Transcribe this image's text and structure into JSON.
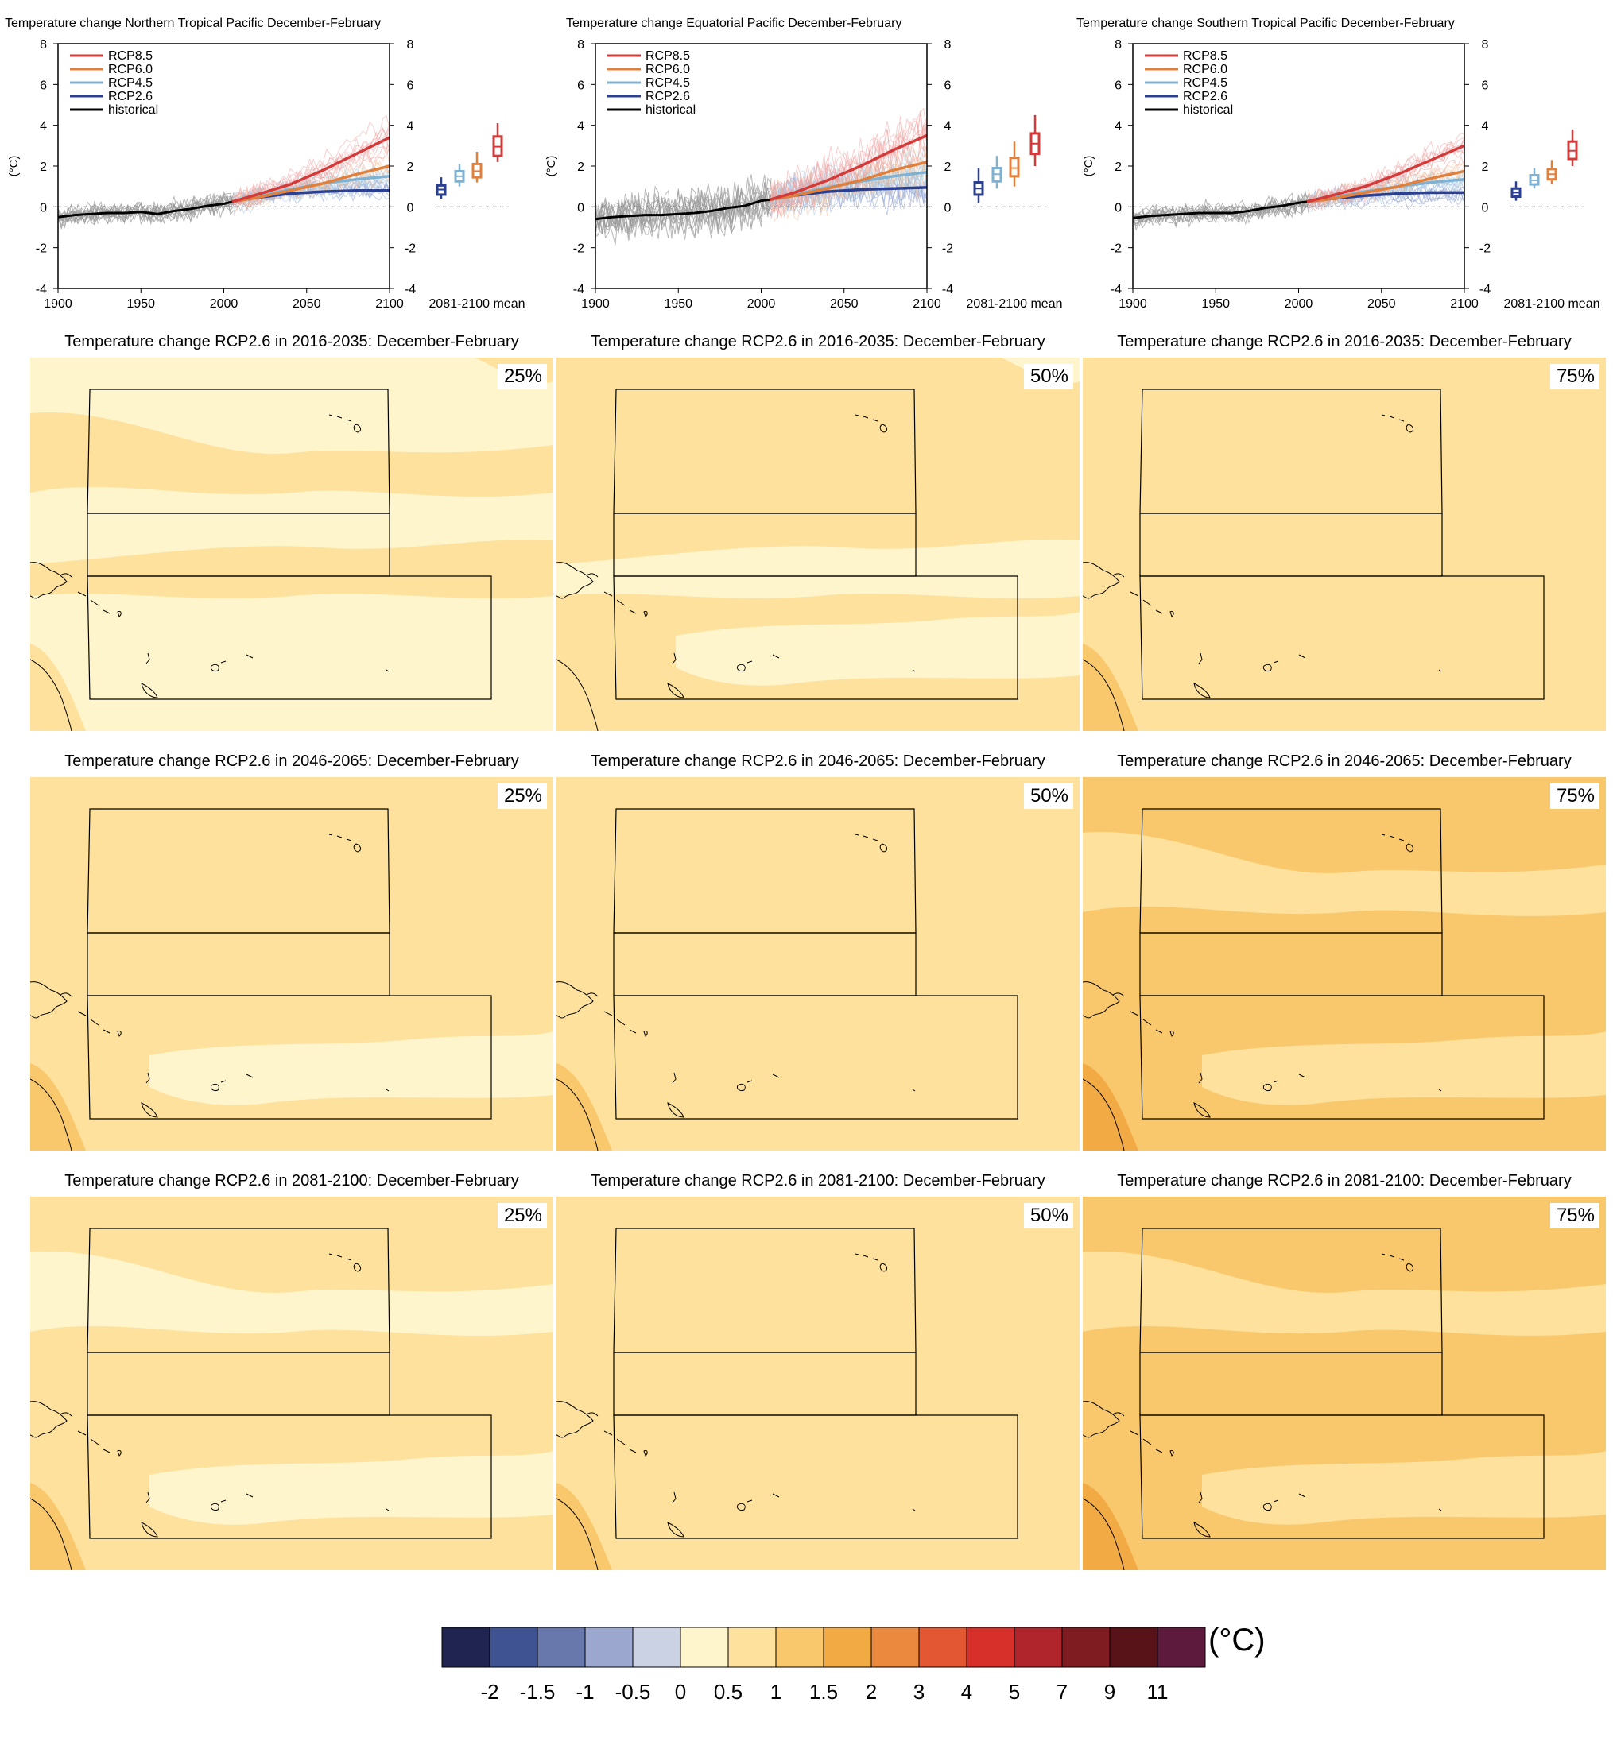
{
  "chart_data": [
    {
      "type": "line",
      "title": "Temperature change Northern Tropical Pacific December-February",
      "ylabel": "(°C)",
      "xlim": [
        1900,
        2100
      ],
      "ylim": [
        -4,
        8
      ],
      "xticks": [
        "1900",
        "1950",
        "2000",
        "2050",
        "2100"
      ],
      "yticks": [
        "-4",
        "-2",
        "0",
        "2",
        "4",
        "6",
        "8"
      ],
      "box_label": "2081-2100 mean",
      "legend": [
        "RCP8.5",
        "RCP6.0",
        "RCP4.5",
        "RCP2.6",
        "historical"
      ],
      "legend_position": "top-left",
      "series": [
        {
          "name": "historical",
          "x": [
            1900,
            1910,
            1920,
            1930,
            1940,
            1950,
            1960,
            1970,
            1980,
            1990,
            2000,
            2005
          ],
          "y": [
            -0.5,
            -0.4,
            -0.35,
            -0.3,
            -0.3,
            -0.25,
            -0.35,
            -0.2,
            -0.1,
            0.05,
            0.15,
            0.25
          ]
        },
        {
          "name": "RCP2.6",
          "x": [
            2005,
            2020,
            2040,
            2060,
            2080,
            2100
          ],
          "y": [
            0.25,
            0.45,
            0.65,
            0.75,
            0.8,
            0.8
          ]
        },
        {
          "name": "RCP4.5",
          "x": [
            2005,
            2020,
            2040,
            2060,
            2080,
            2100
          ],
          "y": [
            0.25,
            0.5,
            0.85,
            1.15,
            1.35,
            1.5
          ]
        },
        {
          "name": "RCP6.0",
          "x": [
            2005,
            2020,
            2040,
            2060,
            2080,
            2100
          ],
          "y": [
            0.25,
            0.45,
            0.8,
            1.15,
            1.6,
            2.0
          ]
        },
        {
          "name": "RCP8.5",
          "x": [
            2005,
            2020,
            2040,
            2060,
            2080,
            2100
          ],
          "y": [
            0.25,
            0.6,
            1.1,
            1.8,
            2.6,
            3.4
          ]
        }
      ],
      "boxes": [
        {
          "name": "RCP2.6",
          "min": 0.4,
          "q1": 0.6,
          "median": 0.85,
          "q3": 1.05,
          "max": 1.45
        },
        {
          "name": "RCP4.5",
          "min": 1.0,
          "q1": 1.25,
          "median": 1.5,
          "q3": 1.75,
          "max": 2.1
        },
        {
          "name": "RCP6.0",
          "min": 1.2,
          "q1": 1.45,
          "median": 1.75,
          "q3": 2.1,
          "max": 2.7
        },
        {
          "name": "RCP8.5",
          "min": 2.2,
          "q1": 2.5,
          "median": 2.95,
          "q3": 3.45,
          "max": 4.1
        }
      ]
    },
    {
      "type": "line",
      "title": "Temperature change Equatorial Pacific December-February",
      "ylabel": "(°C)",
      "xlim": [
        1900,
        2100
      ],
      "ylim": [
        -4,
        8
      ],
      "xticks": [
        "1900",
        "1950",
        "2000",
        "2050",
        "2100"
      ],
      "yticks": [
        "-4",
        "-2",
        "0",
        "2",
        "4",
        "6",
        "8"
      ],
      "box_label": "2081-2100 mean",
      "legend": [
        "RCP8.5",
        "RCP6.0",
        "RCP4.5",
        "RCP2.6",
        "historical"
      ],
      "legend_position": "top-left",
      "series": [
        {
          "name": "historical",
          "x": [
            1900,
            1910,
            1920,
            1930,
            1940,
            1950,
            1960,
            1970,
            1980,
            1990,
            2000,
            2005
          ],
          "y": [
            -0.6,
            -0.5,
            -0.45,
            -0.4,
            -0.4,
            -0.35,
            -0.3,
            -0.2,
            -0.05,
            0.05,
            0.3,
            0.35
          ]
        },
        {
          "name": "RCP2.6",
          "x": [
            2005,
            2020,
            2040,
            2060,
            2080,
            2100
          ],
          "y": [
            0.35,
            0.55,
            0.75,
            0.85,
            0.9,
            0.95
          ]
        },
        {
          "name": "RCP4.5",
          "x": [
            2005,
            2020,
            2040,
            2060,
            2080,
            2100
          ],
          "y": [
            0.35,
            0.6,
            0.95,
            1.25,
            1.5,
            1.7
          ]
        },
        {
          "name": "RCP6.0",
          "x": [
            2005,
            2020,
            2040,
            2060,
            2080,
            2100
          ],
          "y": [
            0.35,
            0.55,
            0.9,
            1.3,
            1.8,
            2.2
          ]
        },
        {
          "name": "RCP8.5",
          "x": [
            2005,
            2020,
            2040,
            2060,
            2080,
            2100
          ],
          "y": [
            0.35,
            0.7,
            1.3,
            2.0,
            2.8,
            3.5
          ]
        }
      ],
      "boxes": [
        {
          "name": "RCP2.6",
          "min": 0.2,
          "q1": 0.6,
          "median": 0.9,
          "q3": 1.2,
          "max": 1.9
        },
        {
          "name": "RCP4.5",
          "min": 0.9,
          "q1": 1.25,
          "median": 1.6,
          "q3": 1.9,
          "max": 2.5
        },
        {
          "name": "RCP6.0",
          "min": 1.0,
          "q1": 1.5,
          "median": 1.9,
          "q3": 2.4,
          "max": 3.2
        },
        {
          "name": "RCP8.5",
          "min": 2.0,
          "q1": 2.6,
          "median": 3.1,
          "q3": 3.6,
          "max": 4.5
        }
      ]
    },
    {
      "type": "line",
      "title": "Temperature change Southern Tropical Pacific December-February",
      "ylabel": "(°C)",
      "xlim": [
        1900,
        2100
      ],
      "ylim": [
        -4,
        8
      ],
      "xticks": [
        "1900",
        "1950",
        "2000",
        "2050",
        "2100"
      ],
      "yticks": [
        "-4",
        "-2",
        "0",
        "2",
        "4",
        "6",
        "8"
      ],
      "box_label": "2081-2100 mean",
      "legend": [
        "RCP8.5",
        "RCP6.0",
        "RCP4.5",
        "RCP2.6",
        "historical"
      ],
      "legend_position": "top-left",
      "series": [
        {
          "name": "historical",
          "x": [
            1900,
            1910,
            1920,
            1930,
            1940,
            1950,
            1960,
            1970,
            1980,
            1990,
            2000,
            2005
          ],
          "y": [
            -0.55,
            -0.45,
            -0.4,
            -0.35,
            -0.3,
            -0.3,
            -0.3,
            -0.2,
            -0.05,
            0.05,
            0.2,
            0.25
          ]
        },
        {
          "name": "RCP2.6",
          "x": [
            2005,
            2020,
            2040,
            2060,
            2080,
            2100
          ],
          "y": [
            0.25,
            0.4,
            0.55,
            0.65,
            0.7,
            0.7
          ]
        },
        {
          "name": "RCP4.5",
          "x": [
            2005,
            2020,
            2040,
            2060,
            2080,
            2100
          ],
          "y": [
            0.25,
            0.45,
            0.75,
            1.0,
            1.2,
            1.35
          ]
        },
        {
          "name": "RCP6.0",
          "x": [
            2005,
            2020,
            2040,
            2060,
            2080,
            2100
          ],
          "y": [
            0.25,
            0.4,
            0.7,
            1.0,
            1.4,
            1.75
          ]
        },
        {
          "name": "RCP8.5",
          "x": [
            2005,
            2020,
            2040,
            2060,
            2080,
            2100
          ],
          "y": [
            0.25,
            0.55,
            1.0,
            1.6,
            2.3,
            3.0
          ]
        }
      ],
      "boxes": [
        {
          "name": "RCP2.6",
          "min": 0.3,
          "q1": 0.5,
          "median": 0.7,
          "q3": 0.9,
          "max": 1.25
        },
        {
          "name": "RCP4.5",
          "min": 0.9,
          "q1": 1.1,
          "median": 1.3,
          "q3": 1.55,
          "max": 1.9
        },
        {
          "name": "RCP6.0",
          "min": 1.1,
          "q1": 1.35,
          "median": 1.6,
          "q3": 1.85,
          "max": 2.3
        },
        {
          "name": "RCP8.5",
          "min": 2.0,
          "q1": 2.35,
          "median": 2.75,
          "q3": 3.2,
          "max": 3.8
        }
      ]
    }
  ],
  "maps": [
    {
      "title": "Temperature change RCP2.6 in 2016-2035: December-February",
      "percentile": "25%",
      "base_bin": 5,
      "patches": [
        6,
        6,
        5,
        6
      ]
    },
    {
      "title": "Temperature change RCP2.6 in 2016-2035: December-February",
      "percentile": "50%",
      "base_bin": 6,
      "patches": [
        6,
        5,
        5,
        6
      ]
    },
    {
      "title": "Temperature change RCP2.6 in 2016-2035: December-February",
      "percentile": "75%",
      "base_bin": 6,
      "patches": [
        6,
        6,
        6,
        7
      ]
    },
    {
      "title": "Temperature change RCP2.6 in 2046-2065: December-February",
      "percentile": "25%",
      "base_bin": 6,
      "patches": [
        6,
        6,
        5,
        7
      ]
    },
    {
      "title": "Temperature change RCP2.6 in 2046-2065: December-February",
      "percentile": "50%",
      "base_bin": 6,
      "patches": [
        6,
        6,
        6,
        7
      ]
    },
    {
      "title": "Temperature change RCP2.6 in 2046-2065: December-February",
      "percentile": "75%",
      "base_bin": 7,
      "patches": [
        6,
        7,
        6,
        8
      ]
    },
    {
      "title": "Temperature change RCP2.6 in 2081-2100: December-February",
      "percentile": "25%",
      "base_bin": 6,
      "patches": [
        5,
        6,
        5,
        7
      ]
    },
    {
      "title": "Temperature change RCP2.6 in 2081-2100: December-February",
      "percentile": "50%",
      "base_bin": 6,
      "patches": [
        6,
        6,
        6,
        7
      ]
    },
    {
      "title": "Temperature change RCP2.6 in 2081-2100: December-February",
      "percentile": "75%",
      "base_bin": 7,
      "patches": [
        6,
        7,
        6,
        8
      ]
    }
  ],
  "colorbar": {
    "unit": "(°C)",
    "labels": [
      "-2",
      "-1.5",
      "-1",
      "-0.5",
      "0",
      "0.5",
      "1",
      "1.5",
      "2",
      "3",
      "4",
      "5",
      "7",
      "9",
      "11"
    ],
    "colors": [
      "#1f2550",
      "#3f5393",
      "#6878ad",
      "#9ba7cf",
      "#cbd2e3",
      "#fff5cc",
      "#fde19c",
      "#f9c86c",
      "#f2aa45",
      "#eb8a3f",
      "#e35832",
      "#d7302b",
      "#b0252c",
      "#7e1c22",
      "#571318",
      "#5e1a3d"
    ]
  },
  "colors": {
    "RCP8.5": "#d23b3a",
    "RCP6.0": "#e1803c",
    "RCP4.5": "#7fb1d2",
    "RCP2.6": "#2a3f8f",
    "historical": "#000000"
  }
}
